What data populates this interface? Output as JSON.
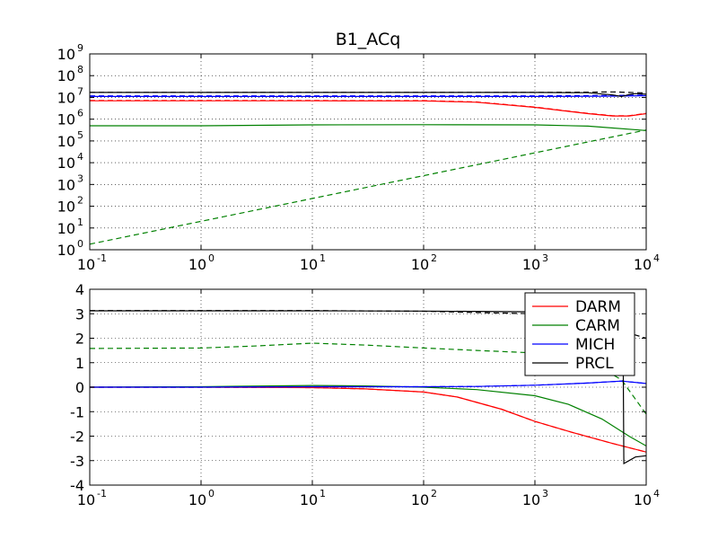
{
  "chart_data": [
    {
      "type": "line",
      "title": "B1_ACq",
      "xscale": "log",
      "yscale": "log",
      "xlim": [
        0.1,
        10000
      ],
      "ylim": [
        1,
        1000000000
      ],
      "xlabel": "",
      "ylabel": "",
      "grid": true,
      "x_ticks": [
        {
          "base": "10",
          "exp": "-1"
        },
        {
          "base": "10",
          "exp": "0"
        },
        {
          "base": "10",
          "exp": "1"
        },
        {
          "base": "10",
          "exp": "2"
        },
        {
          "base": "10",
          "exp": "3"
        },
        {
          "base": "10",
          "exp": "4"
        }
      ],
      "y_ticks": [
        {
          "base": "10",
          "exp": "0"
        },
        {
          "base": "10",
          "exp": "1"
        },
        {
          "base": "10",
          "exp": "2"
        },
        {
          "base": "10",
          "exp": "3"
        },
        {
          "base": "10",
          "exp": "4"
        },
        {
          "base": "10",
          "exp": "5"
        },
        {
          "base": "10",
          "exp": "6"
        },
        {
          "base": "10",
          "exp": "7"
        },
        {
          "base": "10",
          "exp": "8"
        },
        {
          "base": "10",
          "exp": "9"
        }
      ],
      "series": [
        {
          "name": "DARM",
          "color": "#ff0000",
          "style": "solid",
          "x": [
            0.1,
            1,
            10,
            100,
            300,
            1000,
            3000,
            5000,
            7000,
            10000
          ],
          "y": [
            7000000,
            7000000,
            7000000,
            6900000,
            6000000,
            3500000,
            1800000,
            1400000,
            1400000,
            1800000
          ]
        },
        {
          "name": "DARM",
          "color": "#ff0000",
          "style": "dashed",
          "x": [
            0.1,
            1,
            10,
            100,
            300,
            1000,
            3000,
            5000,
            7000,
            10000
          ],
          "y": [
            7200000,
            7200000,
            7200000,
            7100000,
            6200000,
            3600000,
            1850000,
            1450000,
            1450000,
            1850000
          ]
        },
        {
          "name": "CARM",
          "color": "#008000",
          "style": "solid",
          "x": [
            0.1,
            1,
            10,
            100,
            1000,
            3000,
            10000
          ],
          "y": [
            500000,
            500000,
            550000,
            560000,
            550000,
            480000,
            300000
          ]
        },
        {
          "name": "CARM",
          "color": "#008000",
          "style": "dashed",
          "x": [
            0.1,
            10000
          ],
          "y": [
            1.8,
            320000
          ]
        },
        {
          "name": "MICH",
          "color": "#0000ff",
          "style": "solid",
          "x": [
            0.1,
            1,
            10,
            100,
            1000,
            5000,
            10000
          ],
          "y": [
            11000000,
            11000000,
            11000000,
            11000000,
            11000000,
            11500000,
            12000000
          ]
        },
        {
          "name": "MICH",
          "color": "#0000ff",
          "style": "dashed",
          "x": [
            0.1,
            1,
            10,
            100,
            1000,
            5000,
            10000
          ],
          "y": [
            11800000,
            11800000,
            11800000,
            11800000,
            11800000,
            12300000,
            12800000
          ]
        },
        {
          "name": "PRCL",
          "color": "#000000",
          "style": "solid",
          "x": [
            0.1,
            1,
            10,
            100,
            1000,
            3000,
            5000,
            6000,
            7000,
            8000,
            10000
          ],
          "y": [
            17000000,
            17000000,
            17000000,
            17000000,
            17000000,
            16500000,
            13000000,
            11000000,
            13500000,
            15000000,
            14000000
          ]
        },
        {
          "name": "PRCL",
          "color": "#000000",
          "style": "dashed",
          "x": [
            0.1,
            1,
            10,
            100,
            1000,
            3000,
            5000,
            10000
          ],
          "y": [
            17000000,
            17000000,
            17000000,
            17000000,
            17000000,
            17500000,
            18000000,
            16000000
          ]
        }
      ]
    },
    {
      "type": "line",
      "title": "",
      "xscale": "log",
      "yscale": "linear",
      "xlim": [
        0.1,
        10000
      ],
      "ylim": [
        -4,
        4
      ],
      "xlabel": "",
      "ylabel": "",
      "grid": true,
      "legend_position": "top-right",
      "x_ticks": [
        {
          "base": "10",
          "exp": "-1"
        },
        {
          "base": "10",
          "exp": "0"
        },
        {
          "base": "10",
          "exp": "1"
        },
        {
          "base": "10",
          "exp": "2"
        },
        {
          "base": "10",
          "exp": "3"
        },
        {
          "base": "10",
          "exp": "4"
        }
      ],
      "y_ticks": [
        "4",
        "3",
        "2",
        "1",
        "0",
        "-1",
        "-2",
        "-3",
        "-4"
      ],
      "y_tick_values": [
        4,
        3,
        2,
        1,
        0,
        -1,
        -2,
        -3,
        -4
      ],
      "legend": [
        {
          "label": "DARM",
          "color": "#ff0000"
        },
        {
          "label": "CARM",
          "color": "#008000"
        },
        {
          "label": "MICH",
          "color": "#0000ff"
        },
        {
          "label": "PRCL",
          "color": "#000000"
        }
      ],
      "series": [
        {
          "name": "DARM",
          "color": "#ff0000",
          "style": "solid",
          "x": [
            0.1,
            1,
            10,
            30,
            100,
            200,
            500,
            1000,
            2000,
            5000,
            10000
          ],
          "y": [
            0,
            0,
            -0.02,
            -0.07,
            -0.2,
            -0.4,
            -0.9,
            -1.4,
            -1.8,
            -2.3,
            -2.65
          ]
        },
        {
          "name": "DARM",
          "color": "#ff0000",
          "style": "dashed",
          "x": [
            0.1,
            1,
            10,
            30,
            100,
            200,
            500,
            1000,
            2000,
            5000,
            10000
          ],
          "y": [
            0,
            0,
            -0.02,
            -0.07,
            -0.2,
            -0.4,
            -0.9,
            -1.4,
            -1.8,
            -2.3,
            -2.65
          ]
        },
        {
          "name": "CARM",
          "color": "#008000",
          "style": "solid",
          "x": [
            0.1,
            1,
            10,
            30,
            100,
            300,
            1000,
            2000,
            4000,
            7000,
            10000
          ],
          "y": [
            0,
            0.02,
            0.07,
            0.05,
            0,
            -0.1,
            -0.35,
            -0.7,
            -1.3,
            -2.0,
            -2.4
          ]
        },
        {
          "name": "CARM",
          "color": "#008000",
          "style": "dashed",
          "x": [
            0.1,
            1,
            3,
            10,
            30,
            100,
            300,
            1000,
            3000,
            6000,
            10000
          ],
          "y": [
            1.58,
            1.6,
            1.68,
            1.8,
            1.72,
            1.6,
            1.5,
            1.4,
            1.1,
            0.3,
            -1.1
          ]
        },
        {
          "name": "MICH",
          "color": "#0000ff",
          "style": "solid",
          "x": [
            0.1,
            1,
            10,
            100,
            300,
            1000,
            3000,
            6000,
            10000
          ],
          "y": [
            0,
            0,
            0.02,
            0.02,
            0.03,
            0.08,
            0.17,
            0.25,
            0.15
          ]
        },
        {
          "name": "MICH",
          "color": "#0000ff",
          "style": "dashed",
          "x": [
            0.1,
            1,
            10,
            100,
            300,
            1000,
            3000,
            6000,
            10000
          ],
          "y": [
            0,
            0,
            0.02,
            0.02,
            0.03,
            0.08,
            0.17,
            0.25,
            0.15
          ]
        },
        {
          "name": "PRCL",
          "color": "#000000",
          "style": "solid",
          "x": [
            0.1,
            1,
            10,
            100,
            1000,
            3000,
            5000,
            6200,
            6300,
            7000,
            8000,
            10000
          ],
          "y": [
            3.12,
            3.12,
            3.12,
            3.11,
            3.08,
            3.0,
            2.5,
            1.5,
            -3.12,
            -3.0,
            -2.85,
            -2.8
          ]
        },
        {
          "name": "PRCL",
          "color": "#000000",
          "style": "dashed",
          "x": [
            0.1,
            1,
            10,
            100,
            300,
            1000,
            2000,
            10000
          ],
          "y": [
            3.13,
            3.13,
            3.13,
            3.1,
            3.05,
            3.0,
            2.95,
            2.0
          ]
        }
      ]
    }
  ]
}
